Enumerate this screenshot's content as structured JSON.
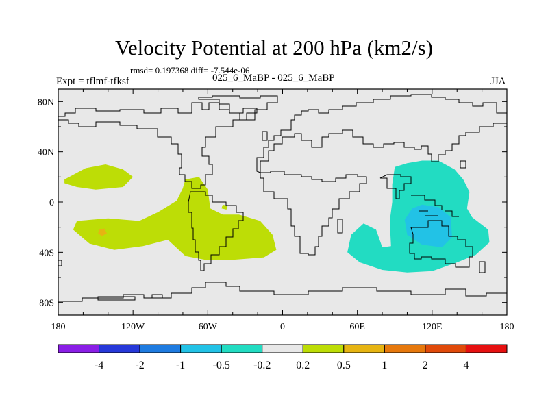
{
  "chart_data": {
    "type": "heatmap",
    "title": "Velocity Potential at 200 hPa (km2/s)",
    "stats": {
      "rmsd": "0.197368",
      "diff": "-7.544e-06"
    },
    "stats_text": "rmsd= 0.197368 diff= -7.544e-06",
    "experiment_label": "Expt = tflmf-tfksf",
    "comparison_label": "025_6_MaBP - 025_6_MaBP",
    "season": "JJA",
    "x_axis": {
      "range": [
        -180,
        180
      ],
      "ticks": [
        {
          "value": -180,
          "label": "180"
        },
        {
          "value": -120,
          "label": "120W"
        },
        {
          "value": -60,
          "label": "60W"
        },
        {
          "value": 0,
          "label": "0"
        },
        {
          "value": 60,
          "label": "60E"
        },
        {
          "value": 120,
          "label": "120E"
        },
        {
          "value": 180,
          "label": "180"
        }
      ]
    },
    "y_axis": {
      "range": [
        -90,
        90
      ],
      "ticks": [
        {
          "value": 80,
          "label": "80N"
        },
        {
          "value": 40,
          "label": "40N"
        },
        {
          "value": 0,
          "label": "0"
        },
        {
          "value": -40,
          "label": "40S"
        },
        {
          "value": -80,
          "label": "80S"
        }
      ]
    },
    "colorbar": {
      "boundaries": [
        "-4",
        "-2",
        "-1",
        "-0.5",
        "-0.2",
        "0.2",
        "0.5",
        "1",
        "2",
        "4"
      ],
      "colors": [
        "#8a1ee6",
        "#2638d9",
        "#1e7be0",
        "#22c2e6",
        "#22dcc2",
        "#e8e8e8",
        "#bddd06",
        "#e6b412",
        "#e6780c",
        "#e04a0a",
        "#e61010"
      ]
    },
    "regions": [
      {
        "name": "positive-0.2-0.5-pacific-north",
        "bin": "0.2 to 0.5",
        "polygon": [
          [
            -175,
            18
          ],
          [
            -158,
            27
          ],
          [
            -142,
            30
          ],
          [
            -128,
            26
          ],
          [
            -120,
            20
          ],
          [
            -128,
            12
          ],
          [
            -150,
            10
          ],
          [
            -165,
            12
          ],
          [
            -175,
            15
          ]
        ]
      },
      {
        "name": "positive-0.2-0.5-pacific-south",
        "bin": "0.2 to 0.5",
        "polygon": [
          [
            -165,
            -15
          ],
          [
            -140,
            -13
          ],
          [
            -115,
            -15
          ],
          [
            -100,
            -8
          ],
          [
            -85,
            1
          ],
          [
            -80,
            11
          ],
          [
            -78,
            18
          ],
          [
            -67,
            20
          ],
          [
            -60,
            10
          ],
          [
            -58,
            -5
          ],
          [
            -48,
            -10
          ],
          [
            -35,
            -10
          ],
          [
            -18,
            -15
          ],
          [
            -8,
            -26
          ],
          [
            -5,
            -38
          ],
          [
            -15,
            -44
          ],
          [
            -40,
            -46
          ],
          [
            -62,
            -46
          ],
          [
            -78,
            -43
          ],
          [
            -92,
            -30
          ],
          [
            -112,
            -35
          ],
          [
            -135,
            -38
          ],
          [
            -155,
            -33
          ],
          [
            -168,
            -22
          ]
        ]
      },
      {
        "name": "positive-0.2-0.5-small-patch",
        "bin": "0.2 to 0.5",
        "polygon": [
          [
            -48,
            -2
          ],
          [
            -44,
            -3
          ],
          [
            -45,
            -6
          ],
          [
            -49,
            -5
          ]
        ]
      },
      {
        "name": "positive-0.5-1-spot",
        "bin": "0.5 to 1",
        "polygon": [
          [
            -147,
            -22
          ],
          [
            -143,
            -21
          ],
          [
            -141,
            -25
          ],
          [
            -145,
            -27
          ],
          [
            -148,
            -25
          ]
        ]
      },
      {
        "name": "negative-0.5-0.2-indian-ocean",
        "bin": "-0.5 to -0.2",
        "polygon": [
          [
            90,
            28
          ],
          [
            100,
            31
          ],
          [
            112,
            33
          ],
          [
            125,
            33
          ],
          [
            138,
            26
          ],
          [
            145,
            18
          ],
          [
            150,
            8
          ],
          [
            148,
            -5
          ],
          [
            152,
            -12
          ],
          [
            165,
            -22
          ],
          [
            166,
            -32
          ],
          [
            155,
            -42
          ],
          [
            140,
            -48
          ],
          [
            120,
            -55
          ],
          [
            100,
            -56
          ],
          [
            80,
            -54
          ],
          [
            62,
            -48
          ],
          [
            52,
            -40
          ],
          [
            55,
            -26
          ],
          [
            65,
            -17
          ],
          [
            75,
            -22
          ],
          [
            80,
            -36
          ],
          [
            87,
            -35
          ],
          [
            86,
            -15
          ],
          [
            88,
            0
          ],
          [
            88,
            14
          ]
        ]
      },
      {
        "name": "negative-1-0.5-core",
        "bin": "-1 to -0.5",
        "polygon": [
          [
            112,
            -2
          ],
          [
            125,
            -4
          ],
          [
            135,
            -12
          ],
          [
            136,
            -28
          ],
          [
            128,
            -36
          ],
          [
            112,
            -34
          ],
          [
            100,
            -26
          ],
          [
            98,
            -14
          ],
          [
            104,
            -5
          ]
        ]
      }
    ]
  }
}
